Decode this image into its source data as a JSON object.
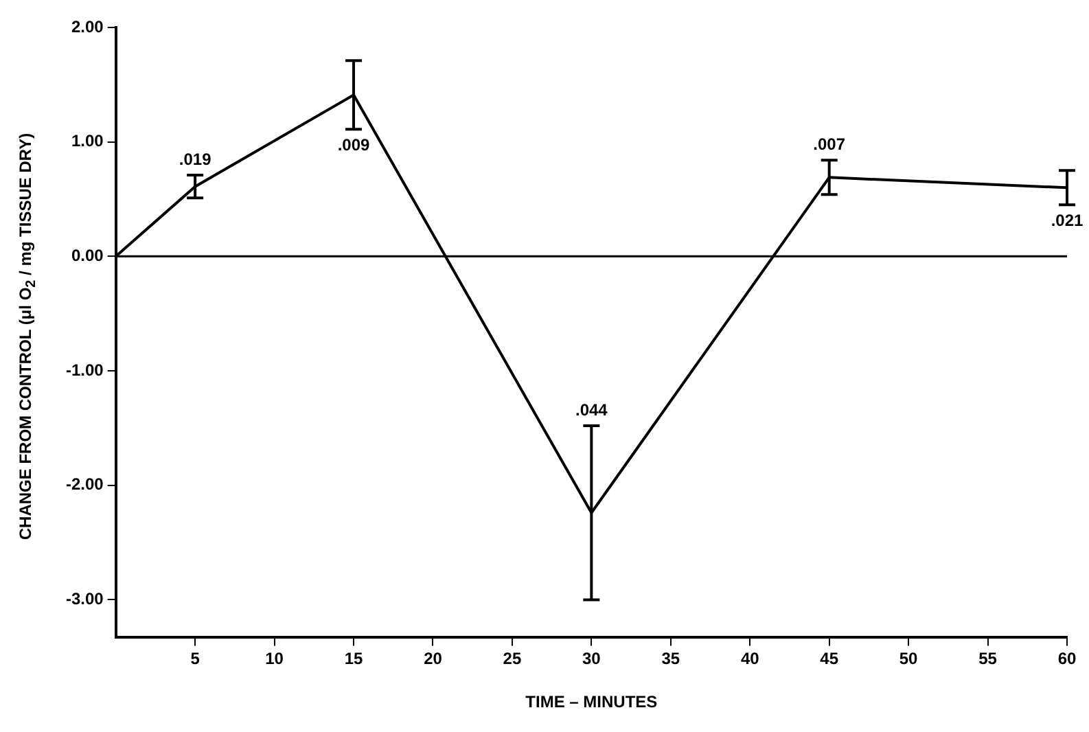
{
  "chart_data": {
    "type": "line",
    "xlabel": "TIME – MINUTES",
    "ylabel": "CHANGE FROM CONTROL (μl O$_{2}$ / mg TISSUE DRY)",
    "x": [
      0,
      5,
      15,
      30,
      45,
      60
    ],
    "series": [
      {
        "color": "#000000",
        "values": [
          0,
          0.61,
          1.41,
          -2.24,
          0.69,
          0.6
        ],
        "errors": [
          null,
          0.1,
          0.3,
          0.76,
          0.15,
          0.15
        ]
      }
    ],
    "annotations": [
      {
        "text": ".019",
        "x": 5,
        "y": 0.61
      },
      {
        "text": ".009",
        "x": 15,
        "y": 1.41
      },
      {
        "text": ".044",
        "x": 30,
        "y": -1.48
      },
      {
        "text": ".007",
        "x": 45,
        "y": 0.69
      },
      {
        "text": ".021",
        "x": 60,
        "y": 0.6
      }
    ],
    "xlim": [
      0,
      60
    ],
    "xticks": [
      5,
      10,
      15,
      20,
      25,
      30,
      35,
      40,
      45,
      50,
      55,
      60
    ],
    "ylim": [
      -3.33,
      2.0
    ],
    "yticks": [
      {
        "value": 2,
        "label": "2.00"
      },
      {
        "value": 1,
        "label": "1.00"
      },
      {
        "value": 0,
        "label": "0.00"
      },
      {
        "value": -1,
        "label": "-1.00"
      },
      {
        "value": -2,
        "label": "-2.00"
      },
      {
        "value": -3,
        "label": "-3.00"
      }
    ],
    "ref_lines": [
      {
        "axis": "y",
        "value": 0,
        "color": "#000000"
      }
    ],
    "grid": false,
    "legend": false,
    "marker": "none",
    "line_style": "solid"
  }
}
